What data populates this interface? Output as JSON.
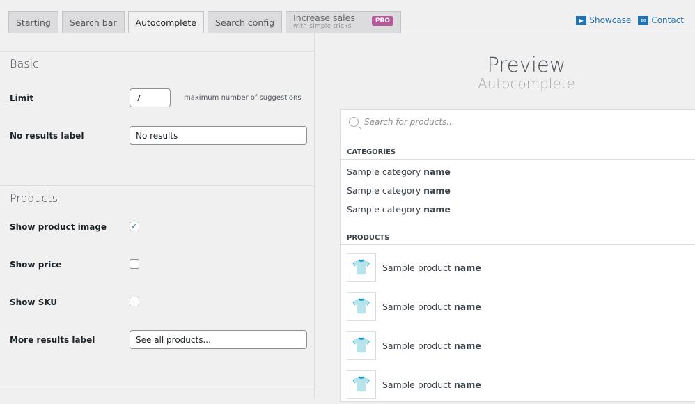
{
  "tabs": [
    {
      "label": "Starting"
    },
    {
      "label": "Search bar"
    },
    {
      "label": "Autocomplete",
      "active": true
    },
    {
      "label": "Search config"
    }
  ],
  "pro_tab": {
    "title": "Increase sales",
    "subtitle": "with simple tricks",
    "badge": "PRO"
  },
  "links": {
    "showcase": "Showcase",
    "contact": "Contact"
  },
  "accent": "#2271b1",
  "basic": {
    "heading": "Basic",
    "limit_label": "Limit",
    "limit_value": "7",
    "limit_hint": "maximum number of suggestions",
    "no_results_label": "No results label",
    "no_results_value": "No results"
  },
  "products": {
    "heading": "Products",
    "show_image": "Show product image",
    "show_image_checked": true,
    "show_price": "Show price",
    "show_price_checked": false,
    "show_sku": "Show SKU",
    "show_sku_checked": false,
    "more_label": "More results label",
    "more_value": "See all products..."
  },
  "preview": {
    "title": "Preview",
    "subtitle": "Autocomplete",
    "search_placeholder": "Search for products...",
    "categories_heading": "CATEGORIES",
    "products_heading": "PRODUCTS",
    "categories": [
      {
        "text": "Sample category ",
        "bold": "name"
      },
      {
        "text": "Sample category ",
        "bold": "name"
      },
      {
        "text": "Sample category ",
        "bold": "name"
      }
    ],
    "items": [
      {
        "text": "Sample product ",
        "bold": "name"
      },
      {
        "text": "Sample product ",
        "bold": "name"
      },
      {
        "text": "Sample product ",
        "bold": "name"
      },
      {
        "text": "Sample product ",
        "bold": "name"
      }
    ]
  }
}
